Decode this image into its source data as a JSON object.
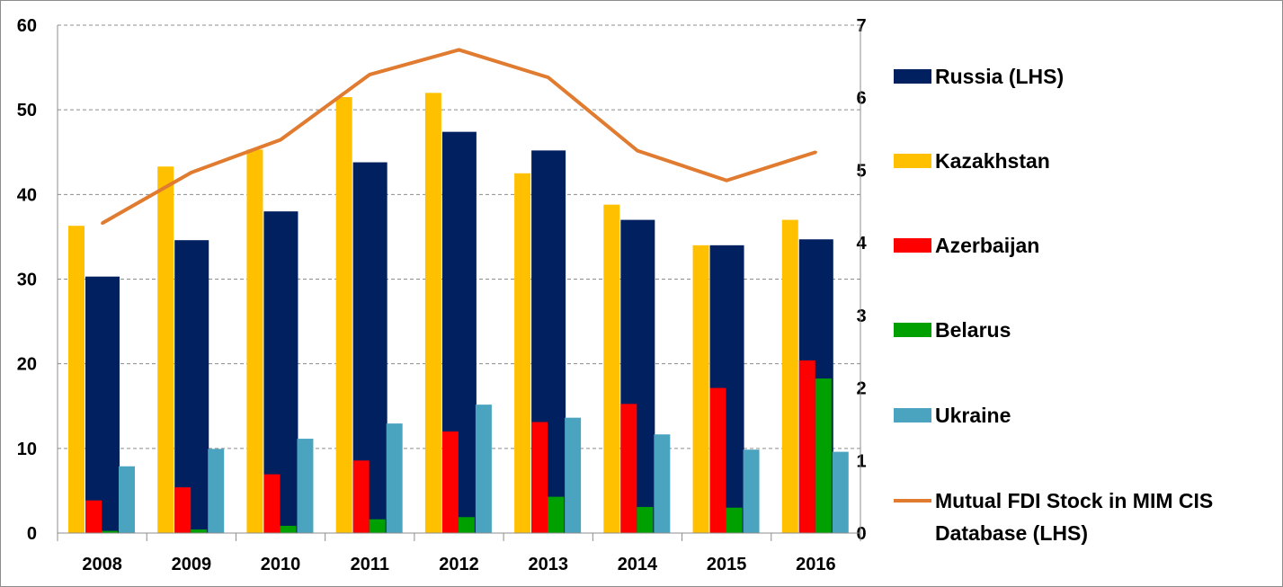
{
  "chart_data": {
    "type": "bar",
    "categories": [
      "2008",
      "2009",
      "2010",
      "2011",
      "2012",
      "2013",
      "2014",
      "2015",
      "2016"
    ],
    "series": [
      {
        "name": "Kazakhstan",
        "color": "#ffc000",
        "axis": "left",
        "kind": "bar",
        "values": [
          36.3,
          43.3,
          45.3,
          51.5,
          52.0,
          42.5,
          38.8,
          34.0,
          37.0
        ]
      },
      {
        "name": "Russia (LHS)",
        "color": "#002060",
        "axis": "left",
        "kind": "bar",
        "values": [
          30.3,
          34.6,
          38.0,
          43.8,
          47.4,
          45.2,
          37.0,
          34.0,
          34.7
        ]
      },
      {
        "name": "Azerbaijan",
        "color": "#ff0000",
        "axis": "right",
        "kind": "bar",
        "values": [
          0.45,
          0.63,
          0.81,
          1.0,
          1.4,
          1.53,
          1.78,
          2.0,
          2.38
        ]
      },
      {
        "name": "Belarus",
        "color": "#00a000",
        "axis": "right",
        "kind": "bar",
        "values": [
          0.03,
          0.05,
          0.1,
          0.19,
          0.22,
          0.5,
          0.36,
          0.35,
          2.13
        ]
      },
      {
        "name": "Ukraine",
        "color": "#4aa3bf",
        "axis": "right",
        "kind": "bar",
        "values": [
          0.92,
          1.16,
          1.3,
          1.51,
          1.77,
          1.59,
          1.36,
          1.15,
          1.12
        ]
      },
      {
        "name": "Mutual FDI Stock in MIM CIS Database (LHS)",
        "color": "#e07b2f",
        "axis": "right",
        "kind": "line",
        "values": [
          4.27,
          4.97,
          5.42,
          6.32,
          6.66,
          6.28,
          5.27,
          4.86,
          5.25
        ]
      }
    ],
    "legend": {
      "position": "right",
      "items": [
        {
          "label": "Russia (LHS)",
          "color": "#002060",
          "marker": "box"
        },
        {
          "label": "Kazakhstan",
          "color": "#ffc000",
          "marker": "box"
        },
        {
          "label": "Azerbaijan",
          "color": "#ff0000",
          "marker": "box"
        },
        {
          "label": "Belarus",
          "color": "#00a000",
          "marker": "box"
        },
        {
          "label": "Ukraine",
          "color": "#4aa3bf",
          "marker": "box"
        },
        {
          "label": "Mutual FDI Stock in MIM CIS Database (LHS)",
          "color": "#e07b2f",
          "marker": "line",
          "lines": [
            "Mutual FDI Stock in MIM CIS",
            "Database (LHS)"
          ]
        }
      ]
    },
    "y_left": {
      "min": 0,
      "max": 60,
      "ticks": [
        "0",
        "10",
        "20",
        "30",
        "40",
        "50",
        "60"
      ]
    },
    "y_right": {
      "min": 0,
      "max": 7,
      "ticks": [
        "0",
        "1",
        "2",
        "3",
        "4",
        "5",
        "6",
        "7"
      ]
    },
    "grid": true,
    "title": "",
    "xlabel": "",
    "ylabel": ""
  }
}
